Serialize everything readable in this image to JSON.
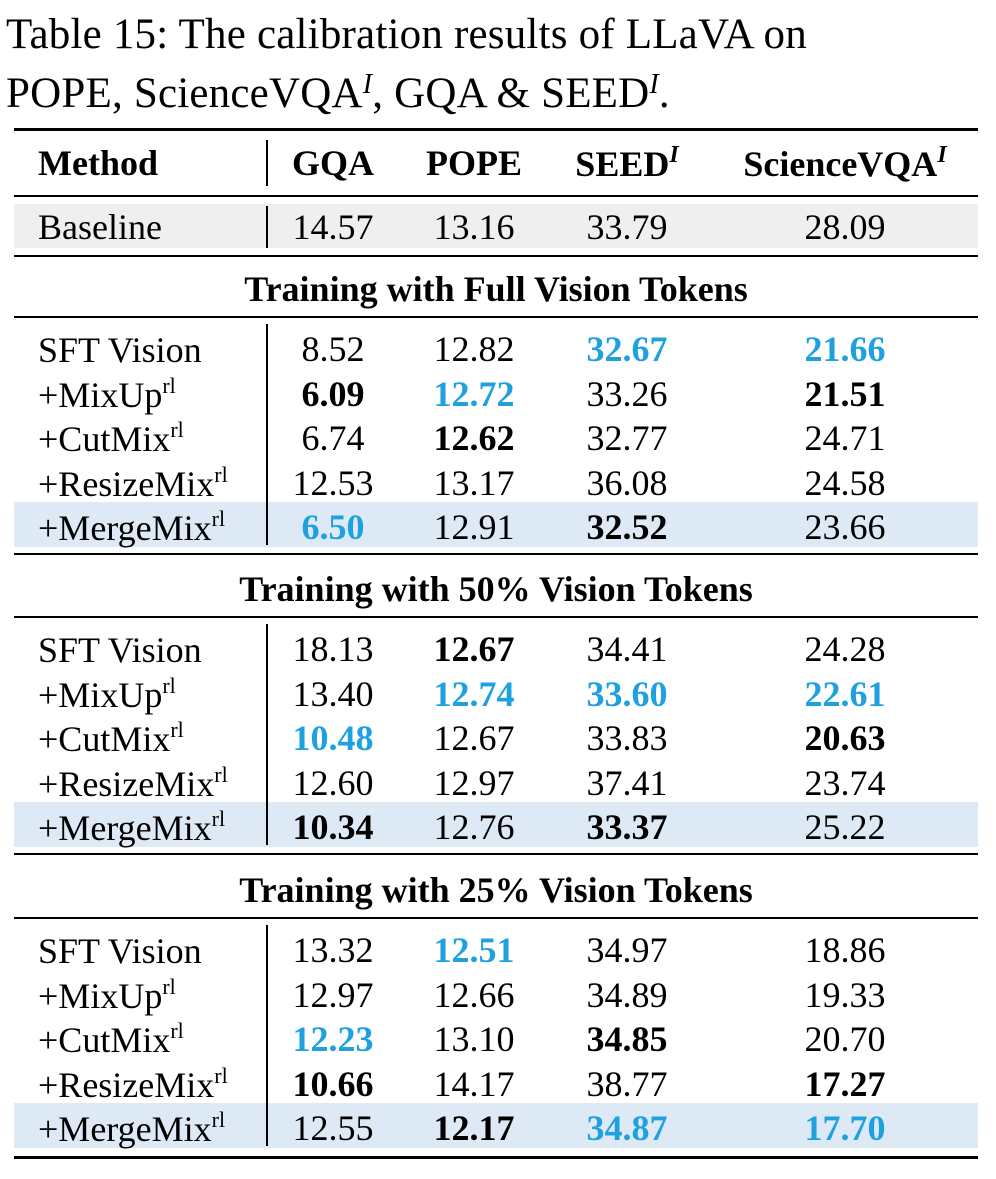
{
  "caption": {
    "line1": "Table 15:  The calibration results of LLaVA on",
    "line2_a": "POPE, ScienceVQA",
    "line2_sup1": "I",
    "line2_b": ", GQA & SEED",
    "line2_sup2": "I",
    "line2_c": "."
  },
  "header": {
    "method": "Method",
    "gqa": "GQA",
    "pope": "POPE",
    "seed": "SEED",
    "seed_sup": "I",
    "sciencevqa": "ScienceVQA",
    "sciencevqa_sup": "I"
  },
  "baseline": {
    "method": "Baseline",
    "gqa": "14.57",
    "pope": "13.16",
    "seed": "33.79",
    "sciencevqa": "28.09"
  },
  "sections": [
    {
      "title": "Training with Full Vision Tokens",
      "rows": [
        {
          "method": "SFT Vision",
          "sup": "",
          "gqa": "8.52",
          "pope": "12.82",
          "seed": "32.67",
          "sciencevqa": "21.66"
        },
        {
          "method": "+MixUp",
          "sup": "rl",
          "gqa": "6.09",
          "pope": "12.72",
          "seed": "33.26",
          "sciencevqa": "21.51"
        },
        {
          "method": "+CutMix",
          "sup": "rl",
          "gqa": "6.74",
          "pope": "12.62",
          "seed": "32.77",
          "sciencevqa": "24.71"
        },
        {
          "method": "+ResizeMix",
          "sup": "rl",
          "gqa": "12.53",
          "pope": "13.17",
          "seed": "36.08",
          "sciencevqa": "24.58"
        },
        {
          "method": "+MergeMix",
          "sup": "rl",
          "gqa": "6.50",
          "pope": "12.91",
          "seed": "32.52",
          "sciencevqa": "23.66"
        }
      ]
    },
    {
      "title": "Training with 50% Vision Tokens",
      "rows": [
        {
          "method": "SFT Vision",
          "sup": "",
          "gqa": "18.13",
          "pope": "12.67",
          "seed": "34.41",
          "sciencevqa": "24.28"
        },
        {
          "method": "+MixUp",
          "sup": "rl",
          "gqa": "13.40",
          "pope": "12.74",
          "seed": "33.60",
          "sciencevqa": "22.61"
        },
        {
          "method": "+CutMix",
          "sup": "rl",
          "gqa": "10.48",
          "pope": "12.67",
          "seed": "33.83",
          "sciencevqa": "20.63"
        },
        {
          "method": "+ResizeMix",
          "sup": "rl",
          "gqa": "12.60",
          "pope": "12.97",
          "seed": "37.41",
          "sciencevqa": "23.74"
        },
        {
          "method": "+MergeMix",
          "sup": "rl",
          "gqa": "10.34",
          "pope": "12.76",
          "seed": "33.37",
          "sciencevqa": "25.22"
        }
      ]
    },
    {
      "title": "Training with 25% Vision Tokens",
      "rows": [
        {
          "method": "SFT Vision",
          "sup": "",
          "gqa": "13.32",
          "pope": "12.51",
          "seed": "34.97",
          "sciencevqa": "18.86"
        },
        {
          "method": "+MixUp",
          "sup": "rl",
          "gqa": "12.97",
          "pope": "12.66",
          "seed": "34.89",
          "sciencevqa": "19.33"
        },
        {
          "method": "+CutMix",
          "sup": "rl",
          "gqa": "12.23",
          "pope": "13.10",
          "seed": "34.85",
          "sciencevqa": "20.70"
        },
        {
          "method": "+ResizeMix",
          "sup": "rl",
          "gqa": "10.66",
          "pope": "14.17",
          "seed": "38.77",
          "sciencevqa": "17.27"
        },
        {
          "method": "+MergeMix",
          "sup": "rl",
          "gqa": "12.55",
          "pope": "12.17",
          "seed": "34.87",
          "sciencevqa": "17.70"
        }
      ]
    }
  ],
  "colors": {
    "best_blue": "#1fa1e0",
    "baseline_shade": "#efefef",
    "mergemix_shade": "#dde9f4"
  }
}
